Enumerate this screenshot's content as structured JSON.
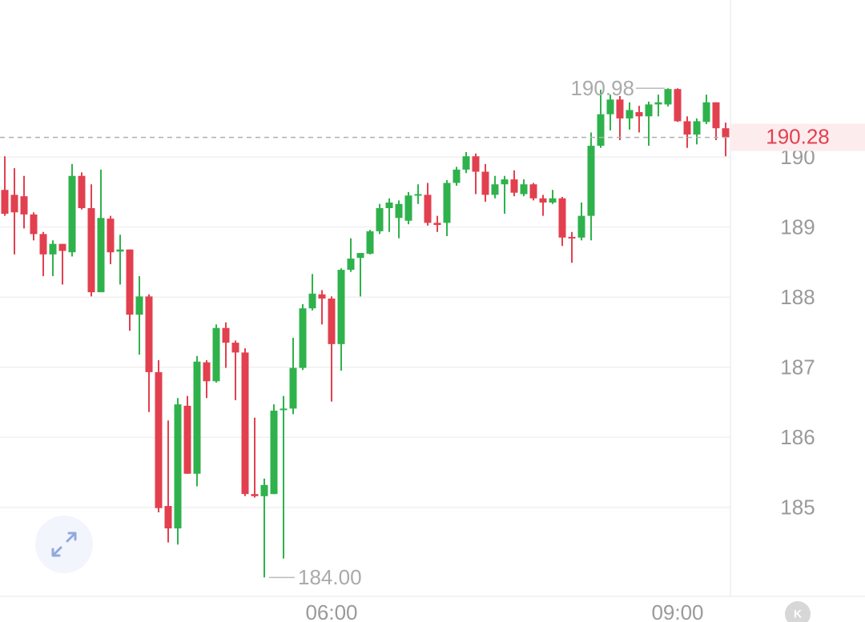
{
  "chart_data": {
    "type": "candlestick",
    "categories": [
      null,
      null,
      null,
      null,
      null,
      null,
      null,
      null,
      null,
      null,
      null,
      null,
      null,
      null,
      null,
      null,
      null,
      null,
      null,
      null,
      null,
      null,
      null,
      null,
      null,
      null,
      null,
      null,
      null,
      null,
      null,
      null,
      null,
      null,
      "06:00",
      null,
      null,
      null,
      null,
      null,
      null,
      null,
      null,
      null,
      null,
      null,
      null,
      null,
      null,
      null,
      null,
      null,
      null,
      null,
      null,
      null,
      null,
      null,
      null,
      null,
      null,
      null,
      null,
      null,
      null,
      null,
      null,
      null,
      null,
      null,
      "09:00",
      null,
      null,
      null,
      null,
      null
    ],
    "open": [
      189.53,
      189.46,
      189.44,
      189.18,
      188.9,
      188.61,
      188.76,
      188.64,
      189.73,
      189.27,
      188.07,
      189.12,
      188.65,
      188.68,
      187.75,
      188.01,
      186.93,
      185.02,
      184.7,
      186.45,
      185.48,
      187.07,
      186.8,
      187.56,
      187.35,
      187.21,
      185.19,
      185.16,
      185.19,
      186.39,
      186.41,
      186.99,
      187.84,
      188.04,
      187.98,
      187.33,
      188.39,
      188.56,
      188.62,
      188.94,
      189.27,
      189.13,
      189.09,
      189.46,
      189.46,
      189.06,
      189.06,
      189.63,
      189.82,
      190.01,
      189.79,
      189.46,
      189.61,
      189.68,
      189.47,
      189.61,
      189.41,
      189.35,
      189.41,
      188.86,
      188.85,
      189.16,
      190.16,
      190.61,
      190.82,
      190.55,
      190.64,
      190.58,
      190.75,
      190.75,
      190.97,
      190.51,
      190.32,
      190.5,
      190.78,
      190.41
    ],
    "high": [
      190.01,
      189.84,
      189.73,
      189.21,
      188.93,
      188.81,
      188.76,
      189.9,
      189.78,
      189.61,
      189.82,
      189.16,
      188.89,
      188.68,
      188.3,
      188.04,
      187.1,
      186.24,
      186.56,
      186.59,
      187.16,
      187.1,
      187.61,
      187.64,
      187.38,
      187.27,
      186.28,
      185.41,
      186.47,
      186.59,
      187.42,
      187.9,
      188.33,
      188.1,
      188.01,
      188.41,
      188.84,
      188.63,
      188.96,
      189.33,
      189.41,
      189.38,
      189.5,
      189.61,
      189.63,
      189.16,
      189.67,
      189.86,
      190.07,
      190.05,
      189.9,
      189.73,
      189.73,
      189.81,
      189.68,
      189.63,
      189.46,
      189.53,
      189.43,
      188.93,
      189.35,
      190.35,
      190.96,
      190.89,
      190.87,
      190.78,
      190.73,
      190.79,
      190.89,
      190.98,
      190.98,
      190.58,
      190.55,
      190.89,
      190.78,
      190.49
    ],
    "low": [
      189.16,
      188.61,
      188.98,
      188.81,
      188.3,
      188.3,
      188.18,
      188.58,
      189.25,
      188.01,
      188.07,
      188.47,
      188.18,
      187.52,
      187.18,
      186.36,
      184.93,
      184.5,
      184.47,
      185.48,
      185.3,
      186.56,
      186.78,
      186.99,
      186.53,
      185.16,
      185.14,
      184.0,
      185.19,
      184.27,
      186.33,
      186.96,
      187.81,
      187.61,
      186.51,
      186.95,
      188.36,
      188.01,
      188.61,
      188.9,
      188.93,
      188.84,
      189.04,
      189.33,
      189.02,
      188.93,
      188.87,
      189.59,
      189.77,
      189.47,
      189.36,
      189.41,
      189.19,
      189.44,
      189.44,
      189.38,
      189.16,
      189.33,
      188.73,
      188.49,
      188.81,
      188.81,
      190.13,
      190.38,
      190.24,
      190.39,
      190.35,
      190.16,
      190.58,
      190.72,
      190.5,
      190.13,
      190.18,
      190.47,
      190.24,
      190.01
    ],
    "close": [
      189.19,
      189.21,
      189.18,
      188.9,
      188.61,
      188.76,
      188.66,
      189.73,
      189.27,
      188.07,
      189.13,
      188.64,
      188.68,
      187.75,
      188.01,
      186.93,
      184.99,
      184.7,
      186.47,
      185.48,
      187.08,
      186.8,
      187.56,
      187.35,
      187.21,
      185.19,
      185.16,
      185.32,
      186.38,
      186.41,
      186.99,
      187.84,
      188.05,
      187.98,
      187.33,
      188.39,
      188.55,
      188.63,
      188.94,
      189.27,
      189.35,
      189.33,
      189.45,
      189.47,
      189.06,
      189.03,
      189.63,
      189.82,
      190.01,
      189.79,
      189.46,
      189.61,
      189.68,
      189.49,
      189.61,
      189.41,
      189.35,
      189.41,
      188.85,
      188.84,
      189.16,
      190.16,
      190.61,
      190.82,
      190.55,
      190.67,
      190.58,
      190.75,
      190.78,
      190.97,
      190.51,
      190.32,
      190.51,
      190.78,
      190.41,
      190.28
    ],
    "up_color": "#2fb24c",
    "down_color": "#e2404f",
    "ylim": [
      183.73,
      192.24
    ],
    "yticks": [
      185,
      186,
      187,
      188,
      189,
      190
    ],
    "grid": true,
    "high_label": "190.98",
    "low_label": "184.00",
    "last_label": "190.28",
    "corner_badge": "K"
  }
}
